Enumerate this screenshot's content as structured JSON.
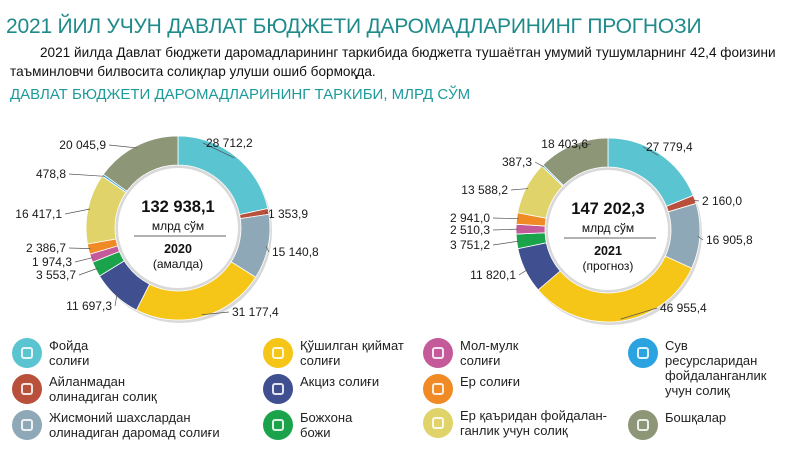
{
  "title": "2021 ЙИЛ УЧУН ДАВЛАТ БЮДЖЕТИ ДАРОМАДЛАРИНИНГ ПРОГНОЗИ",
  "subtitle": "2021 йилда Давлат бюджети даромадларининг таркибида бюджетга тушаётган умумий тушумларнинг 42,4 фоизини таъминловчи билвосита солиқлар улуши ошиб бормоқда.",
  "section_title": "ДАВЛАТ БЮДЖЕТИ ДАРОМАДЛАРИНИНГ ТАРКИБИ, МЛРД СЎМ",
  "legend": [
    {
      "key": "profit",
      "label": "Фойда\nсолиғи",
      "color": "#5bc4d1",
      "icon": "percent-icon"
    },
    {
      "key": "vat",
      "label": "Қўшилган қиймат\nсолиғи",
      "color": "#f5c518",
      "icon": "cart-icon"
    },
    {
      "key": "property",
      "label": "Мол-мулк\nсолиғи",
      "color": "#c45a9a",
      "icon": "house-icon"
    },
    {
      "key": "water",
      "label": "Сув\nресурсларидан\nфойдаланганлик\nучун солиқ",
      "color": "#2aa3e0",
      "icon": "water-drop-icon"
    },
    {
      "key": "turnover",
      "label": "Айланмадан\nолинадиган солиқ",
      "color": "#b8503c",
      "icon": "coins-icon"
    },
    {
      "key": "excise",
      "label": "Акциз солиғи",
      "color": "#3f4f8f",
      "icon": "bottle-icon"
    },
    {
      "key": "land",
      "label": "Ер солиғи",
      "color": "#f08a24",
      "icon": "land-icon"
    },
    {
      "key": "subsoil",
      "label": "Ер қаъридан фойдалан-\nганлик учун солиқ",
      "color": "#e0d36a",
      "icon": "mine-icon"
    },
    {
      "key": "personal",
      "label": "Жисмоний шахслардан\nолинадиган даромад солиғи",
      "color": "#8ea8b8",
      "icon": "person-icon"
    },
    {
      "key": "customs",
      "label": "Божхона\nбожи",
      "color": "#1aa34a",
      "icon": "customs-icon"
    },
    {
      "key": "other",
      "label": "Бошқалар",
      "color": "#8e9678",
      "icon": "other-icon"
    }
  ],
  "chart_data": [
    {
      "type": "pie",
      "variant": "donut",
      "total": "132 938,1",
      "unit": "млрд сўм",
      "year": "2020",
      "note": "(амалда)",
      "slices": [
        {
          "key": "profit",
          "label": "28 712,2",
          "value": 28712.2
        },
        {
          "key": "turnover",
          "label": "1 353,9",
          "value": 1353.9
        },
        {
          "key": "personal",
          "label": "15 140,8",
          "value": 15140.8
        },
        {
          "key": "vat",
          "label": "31 177,4",
          "value": 31177.4
        },
        {
          "key": "excise",
          "label": "11 697,3",
          "value": 11697.3
        },
        {
          "key": "customs",
          "label": "3 553,7",
          "value": 3553.7
        },
        {
          "key": "property",
          "label": "1 974,3",
          "value": 1974.3
        },
        {
          "key": "land",
          "label": "2 386,7",
          "value": 2386.7
        },
        {
          "key": "subsoil",
          "label": "16 417,1",
          "value": 16417.1
        },
        {
          "key": "water",
          "label": "478,8",
          "value": 478.8
        },
        {
          "key": "other",
          "label": "20 045,9",
          "value": 20045.9
        }
      ]
    },
    {
      "type": "pie",
      "variant": "donut",
      "total": "147 202,3",
      "unit": "млрд сўм",
      "year": "2021",
      "note": "(прогноз)",
      "slices": [
        {
          "key": "profit",
          "label": "27 779,4",
          "value": 27779.4
        },
        {
          "key": "turnover",
          "label": "2 160,0",
          "value": 2160.0
        },
        {
          "key": "personal",
          "label": "16 905,8",
          "value": 16905.8
        },
        {
          "key": "vat",
          "label": "46 955,4",
          "value": 46955.4
        },
        {
          "key": "excise",
          "label": "11 820,1",
          "value": 11820.1
        },
        {
          "key": "customs",
          "label": "3 751,2",
          "value": 3751.2
        },
        {
          "key": "property",
          "label": "2 510,3",
          "value": 2510.3
        },
        {
          "key": "land",
          "label": "2 941,0",
          "value": 2941.0
        },
        {
          "key": "subsoil",
          "label": "13 588,2",
          "value": 13588.2
        },
        {
          "key": "water",
          "label": "387,3",
          "value": 387.3
        },
        {
          "key": "other",
          "label": "18 403,6",
          "value": 18403.6
        }
      ]
    }
  ]
}
